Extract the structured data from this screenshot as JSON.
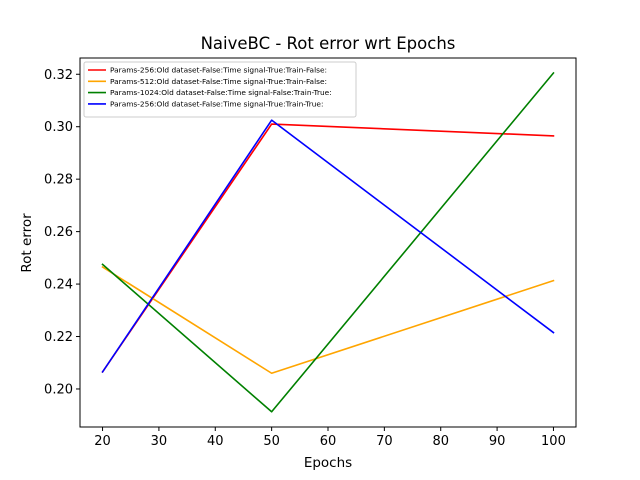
{
  "chart_data": {
    "type": "line",
    "title": "NaiveBC - Rot error wrt Epochs",
    "xlabel": "Epochs",
    "ylabel": "Rot error",
    "x": [
      20,
      50,
      100
    ],
    "xlim": [
      16,
      104
    ],
    "ylim": [
      0.1855,
      0.3262
    ],
    "xticks": [
      20,
      30,
      40,
      50,
      60,
      70,
      80,
      90,
      100
    ],
    "yticks": [
      0.2,
      0.22,
      0.24,
      0.26,
      0.28,
      0.3,
      0.32
    ],
    "grid": false,
    "legend_position": "top-left",
    "series": [
      {
        "name": "Params-256:Old dataset-False:Time signal-True:Train-False:",
        "color": "#ff0000",
        "values": [
          0.2065,
          0.301,
          0.2965
        ]
      },
      {
        "name": "Params-512:Old dataset-False:Time signal-True:Train-False:",
        "color": "#ffa500",
        "values": [
          0.2465,
          0.206,
          0.2413
        ]
      },
      {
        "name": "Params-1024:Old dataset-False:Time signal-False:Train-True:",
        "color": "#008000",
        "values": [
          0.2475,
          0.1913,
          0.3205
        ]
      },
      {
        "name": "Params-256:Old dataset-False:Time signal-True:Train-True:",
        "color": "#0000ff",
        "values": [
          0.2065,
          0.3025,
          0.2215
        ]
      }
    ]
  }
}
